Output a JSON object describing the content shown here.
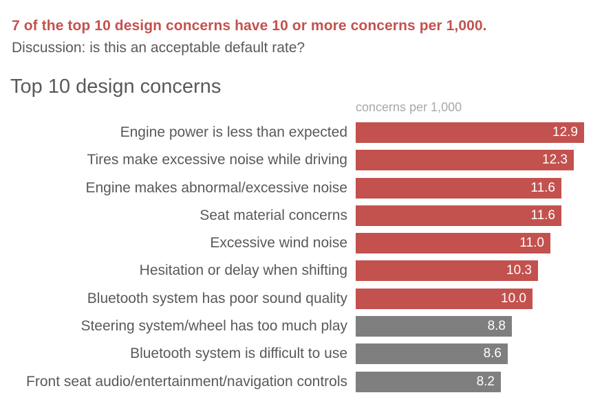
{
  "header": {
    "takeaway": "7 of the top 10 design concerns have 10 or more concerns per 1,000.",
    "discussion": "Discussion: is this an acceptable default rate?"
  },
  "chart_data": {
    "type": "bar",
    "orientation": "horizontal",
    "title": "Top 10 design concerns",
    "value_axis_label": "concerns per 1,000",
    "categories": [
      "Engine power is less than expected",
      "Tires make excessive noise while driving",
      "Engine makes abnormal/excessive noise",
      "Seat material concerns",
      "Excessive wind noise",
      "Hesitation or delay when shifting",
      "Bluetooth system has poor sound quality",
      "Steering system/wheel has too much play",
      "Bluetooth system is difficult to use",
      "Front seat audio/entertainment/navigation controls"
    ],
    "values": [
      12.9,
      12.3,
      11.6,
      11.6,
      11.0,
      10.3,
      10.0,
      8.8,
      8.6,
      8.2
    ],
    "xlim": [
      0,
      14.6
    ],
    "grid": false,
    "legend": "none",
    "highlight_min": 10,
    "value_label_decimals": 1
  },
  "colors": {
    "highlight_bar": "#c3514e",
    "muted_bar": "#7f7f7f",
    "takeaway_text": "#c3514e",
    "discussion_text": "#595959",
    "title_text": "#595959",
    "axis_label_text": "#a8a8a8",
    "category_label_text": "#595959",
    "value_label_text": "#ffffff",
    "background": "#ffffff"
  }
}
